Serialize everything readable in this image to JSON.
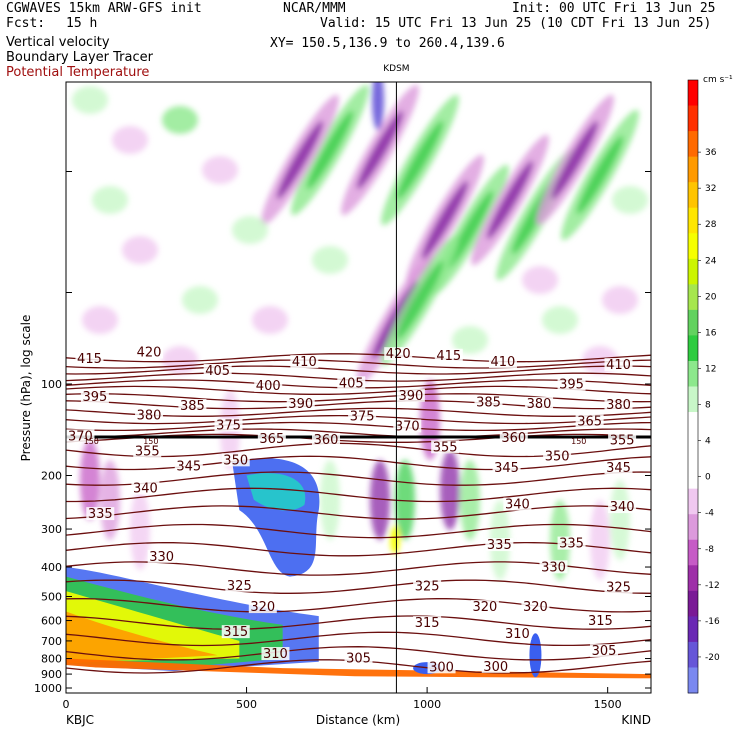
{
  "header": {
    "title_left": "CGWAVES 15km ARW-GFS init",
    "fcst_label": "Fcst:",
    "fcst_value": "15 h",
    "center": "NCAR/MMM",
    "init": "Init: 00 UTC Fri 13 Jun 25",
    "valid": "Valid: 15 UTC Fri 13 Jun 25 (10 CDT Fri 13 Jun 25)",
    "xy": "XY= 150.5,136.9 to 260.4,139.6",
    "field1": "Vertical velocity",
    "field2": "Boundary Layer Tracer",
    "field3": "Potential Temperature",
    "field3_color": "#a01010"
  },
  "chart_data": {
    "type": "heatmap",
    "xlabel": "Distance (km)",
    "ylabel": "Pressure (hPa), log scale",
    "xlim": [
      0,
      1620
    ],
    "x_ticks": [
      "0",
      "500",
      "1000",
      "1500"
    ],
    "x_tick_values": [
      0,
      500,
      1000,
      1500
    ],
    "y_ticks": [
      "100",
      "200",
      "300",
      "400",
      "500",
      "600",
      "700",
      "800",
      "900",
      "1000"
    ],
    "y_tick_values": [
      100,
      200,
      300,
      400,
      500,
      600,
      700,
      800,
      900,
      1000
    ],
    "left_endpoint": "KBJC",
    "right_endpoint": "KIND",
    "marker_label": "KDSM",
    "marker_x": 915,
    "colorbar_units": "cm s⁻¹",
    "colorbar_levels": [
      36,
      32,
      28,
      24,
      20,
      16,
      12,
      8,
      4,
      0,
      -4,
      -8,
      -12,
      -16,
      -20
    ],
    "colorbar_colors": [
      "#ff0000",
      "#ff3000",
      "#ff6a00",
      "#ff9a00",
      "#ffc400",
      "#ffe600",
      "#f6ff00",
      "#ccf500",
      "#a6e64e",
      "#62d25f",
      "#2ecc40",
      "#8ce88c",
      "#c8f7c8",
      "#ffffff",
      "#ffffff",
      "#ffffff",
      "#f0c8f0",
      "#dc9adc",
      "#c65bc6",
      "#9e2fa8",
      "#7a1a96",
      "#6a28b4",
      "#6656d8",
      "#7a88f0"
    ],
    "isentrope_color": "#6b0f0f",
    "isentrope_labels": [
      {
        "text": "415",
        "x": 65,
        "p": 84
      },
      {
        "text": "420",
        "x": 230,
        "p": 80
      },
      {
        "text": "405",
        "x": 420,
        "p": 92
      },
      {
        "text": "410",
        "x": 660,
        "p": 86
      },
      {
        "text": "420",
        "x": 920,
        "p": 81
      },
      {
        "text": "415",
        "x": 1060,
        "p": 82
      },
      {
        "text": "410",
        "x": 1210,
        "p": 86
      },
      {
        "text": "410",
        "x": 1530,
        "p": 88
      },
      {
        "text": "395",
        "x": 80,
        "p": 112
      },
      {
        "text": "400",
        "x": 560,
        "p": 103
      },
      {
        "text": "405",
        "x": 790,
        "p": 101
      },
      {
        "text": "395",
        "x": 1400,
        "p": 102
      },
      {
        "text": "370",
        "x": 40,
        "p": 151
      },
      {
        "text": "380",
        "x": 230,
        "p": 129
      },
      {
        "text": "385",
        "x": 350,
        "p": 120
      },
      {
        "text": "390",
        "x": 650,
        "p": 118
      },
      {
        "text": "390",
        "x": 955,
        "p": 111
      },
      {
        "text": "385",
        "x": 1170,
        "p": 117
      },
      {
        "text": "380",
        "x": 1310,
        "p": 118
      },
      {
        "text": "380",
        "x": 1530,
        "p": 119
      },
      {
        "text": "375",
        "x": 450,
        "p": 139
      },
      {
        "text": "375",
        "x": 820,
        "p": 130
      },
      {
        "text": "370",
        "x": 945,
        "p": 140
      },
      {
        "text": "365",
        "x": 1450,
        "p": 135
      },
      {
        "text": "365",
        "x": 570,
        "p": 154
      },
      {
        "text": "360",
        "x": 720,
        "p": 155
      },
      {
        "text": "360",
        "x": 1240,
        "p": 153
      },
      {
        "text": "355",
        "x": 225,
        "p": 169
      },
      {
        "text": "355",
        "x": 1050,
        "p": 164
      },
      {
        "text": "355",
        "x": 1540,
        "p": 156
      },
      {
        "text": "350",
        "x": 470,
        "p": 181
      },
      {
        "text": "350",
        "x": 1360,
        "p": 176
      },
      {
        "text": "345",
        "x": 340,
        "p": 190
      },
      {
        "text": "345",
        "x": 1220,
        "p": 192
      },
      {
        "text": "345",
        "x": 1530,
        "p": 192
      },
      {
        "text": "340",
        "x": 220,
        "p": 224
      },
      {
        "text": "340",
        "x": 1250,
        "p": 253
      },
      {
        "text": "340",
        "x": 1540,
        "p": 258
      },
      {
        "text": "335",
        "x": 95,
        "p": 272
      },
      {
        "text": "335",
        "x": 1200,
        "p": 344
      },
      {
        "text": "335",
        "x": 1400,
        "p": 340
      },
      {
        "text": "330",
        "x": 265,
        "p": 376
      },
      {
        "text": "330",
        "x": 1350,
        "p": 407
      },
      {
        "text": "325",
        "x": 480,
        "p": 468
      },
      {
        "text": "325",
        "x": 1000,
        "p": 470
      },
      {
        "text": "325",
        "x": 1530,
        "p": 475
      },
      {
        "text": "320",
        "x": 545,
        "p": 550
      },
      {
        "text": "320",
        "x": 1160,
        "p": 550
      },
      {
        "text": "320",
        "x": 1300,
        "p": 550
      },
      {
        "text": "315",
        "x": 470,
        "p": 665
      },
      {
        "text": "315",
        "x": 1000,
        "p": 621
      },
      {
        "text": "315",
        "x": 1480,
        "p": 612
      },
      {
        "text": "310",
        "x": 580,
        "p": 785
      },
      {
        "text": "310",
        "x": 1250,
        "p": 674
      },
      {
        "text": "305",
        "x": 810,
        "p": 812
      },
      {
        "text": "305",
        "x": 1490,
        "p": 768
      },
      {
        "text": "300",
        "x": 1040,
        "p": 868
      },
      {
        "text": "300",
        "x": 1190,
        "p": 865
      }
    ],
    "small_labels": [
      {
        "text": "150",
        "x": 70,
        "p": 154
      },
      {
        "text": "150",
        "x": 235,
        "p": 154
      },
      {
        "text": "150",
        "x": 1420,
        "p": 154
      }
    ]
  }
}
